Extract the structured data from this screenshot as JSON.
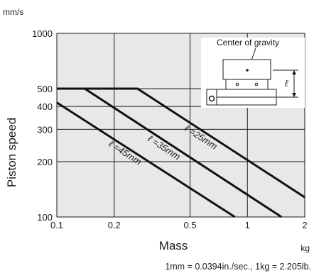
{
  "chart_data": {
    "type": "line",
    "xscale": "log",
    "yscale": "log",
    "xlabel": "Mass",
    "ylabel": "Piston speed",
    "x_unit": "kg",
    "y_unit": "mm/s",
    "xlim": [
      0.1,
      2
    ],
    "ylim": [
      100,
      1000
    ],
    "x_ticks": [
      {
        "value": 0.1,
        "label": "0.1"
      },
      {
        "value": 0.2,
        "label": "0.2"
      },
      {
        "value": 0.5,
        "label": "0.5"
      },
      {
        "value": 1,
        "label": "1"
      },
      {
        "value": 2,
        "label": "2"
      }
    ],
    "y_ticks": [
      {
        "value": 100,
        "label": "100"
      },
      {
        "value": 200,
        "label": "200"
      },
      {
        "value": 300,
        "label": "300"
      },
      {
        "value": 400,
        "label": "400"
      },
      {
        "value": 500,
        "label": "500"
      },
      {
        "value": 1000,
        "label": "1000"
      }
    ],
    "grid": true,
    "background_color": "#e8e8e8",
    "series": [
      {
        "name": "ℓ =25mm",
        "points": [
          [
            0.1,
            500
          ],
          [
            0.265,
            500
          ],
          [
            2.0,
            128
          ]
        ]
      },
      {
        "name": "ℓ =35mm",
        "points": [
          [
            0.1,
            500
          ],
          [
            0.14,
            500
          ],
          [
            1.51,
            100
          ]
        ]
      },
      {
        "name": "ℓ =45mm",
        "points": [
          [
            0.1,
            420
          ],
          [
            0.86,
            100
          ]
        ]
      }
    ],
    "annotation": {
      "label": "Center of gravity",
      "dimension_symbol": "ℓ"
    },
    "footnote": "1mm = 0.0394in./sec., 1kg = 2.205lb."
  }
}
